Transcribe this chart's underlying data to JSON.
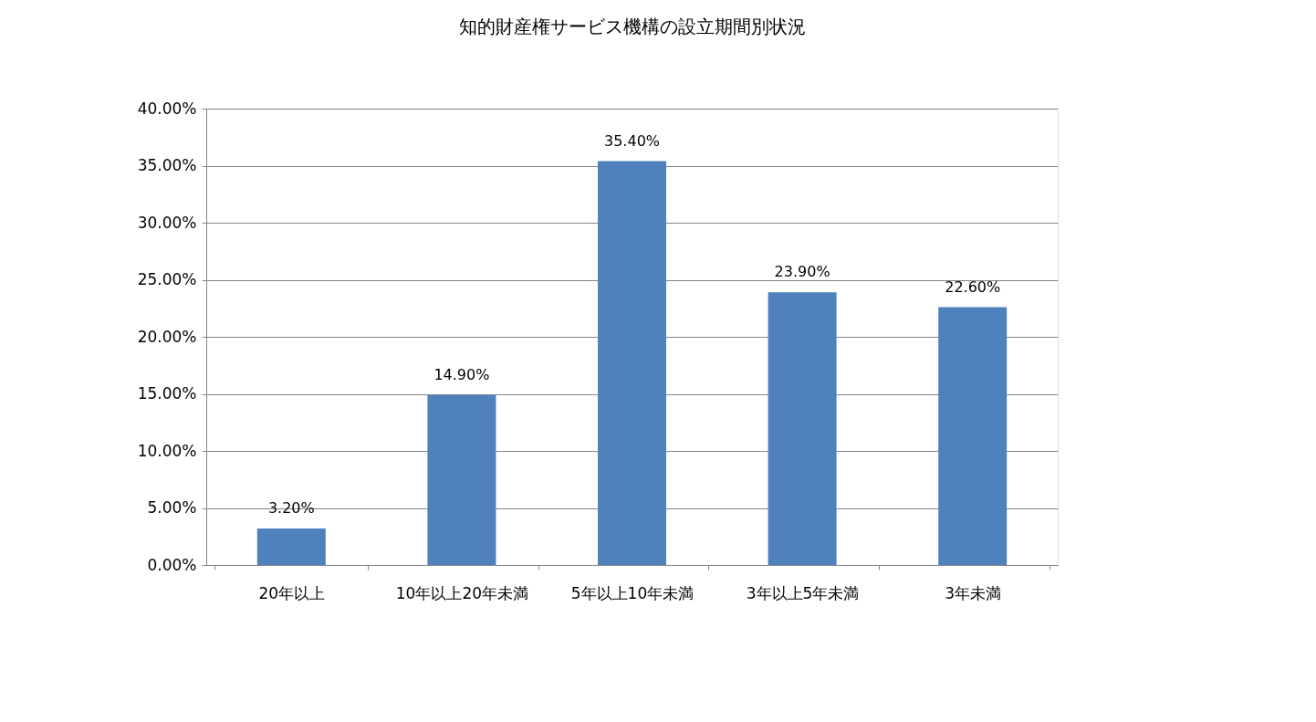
{
  "chart_data": {
    "type": "bar",
    "title": "知的財産権サービス機構の設立期間別状況",
    "categories": [
      "20年以上",
      "10年以上20年未満",
      "5年以上10年未満",
      "3年以上5年未満",
      "3年未満"
    ],
    "values": [
      3.2,
      14.9,
      35.4,
      23.9,
      22.6
    ],
    "value_labels": [
      "3.20%",
      "14.90%",
      "35.40%",
      "23.90%",
      "22.60%"
    ],
    "color": "#4f81bd",
    "ylim": [
      0,
      40
    ],
    "yticks": [
      {
        "value": 0,
        "label": "0.00%"
      },
      {
        "value": 5,
        "label": "5.00%"
      },
      {
        "value": 10,
        "label": "10.00%"
      },
      {
        "value": 15,
        "label": "15.00%"
      },
      {
        "value": 20,
        "label": "20.00%"
      },
      {
        "value": 25,
        "label": "25.00%"
      },
      {
        "value": 30,
        "label": "30.00%"
      },
      {
        "value": 35,
        "label": "35.00%"
      },
      {
        "value": 40,
        "label": "40.00%"
      }
    ],
    "grid": "y"
  }
}
